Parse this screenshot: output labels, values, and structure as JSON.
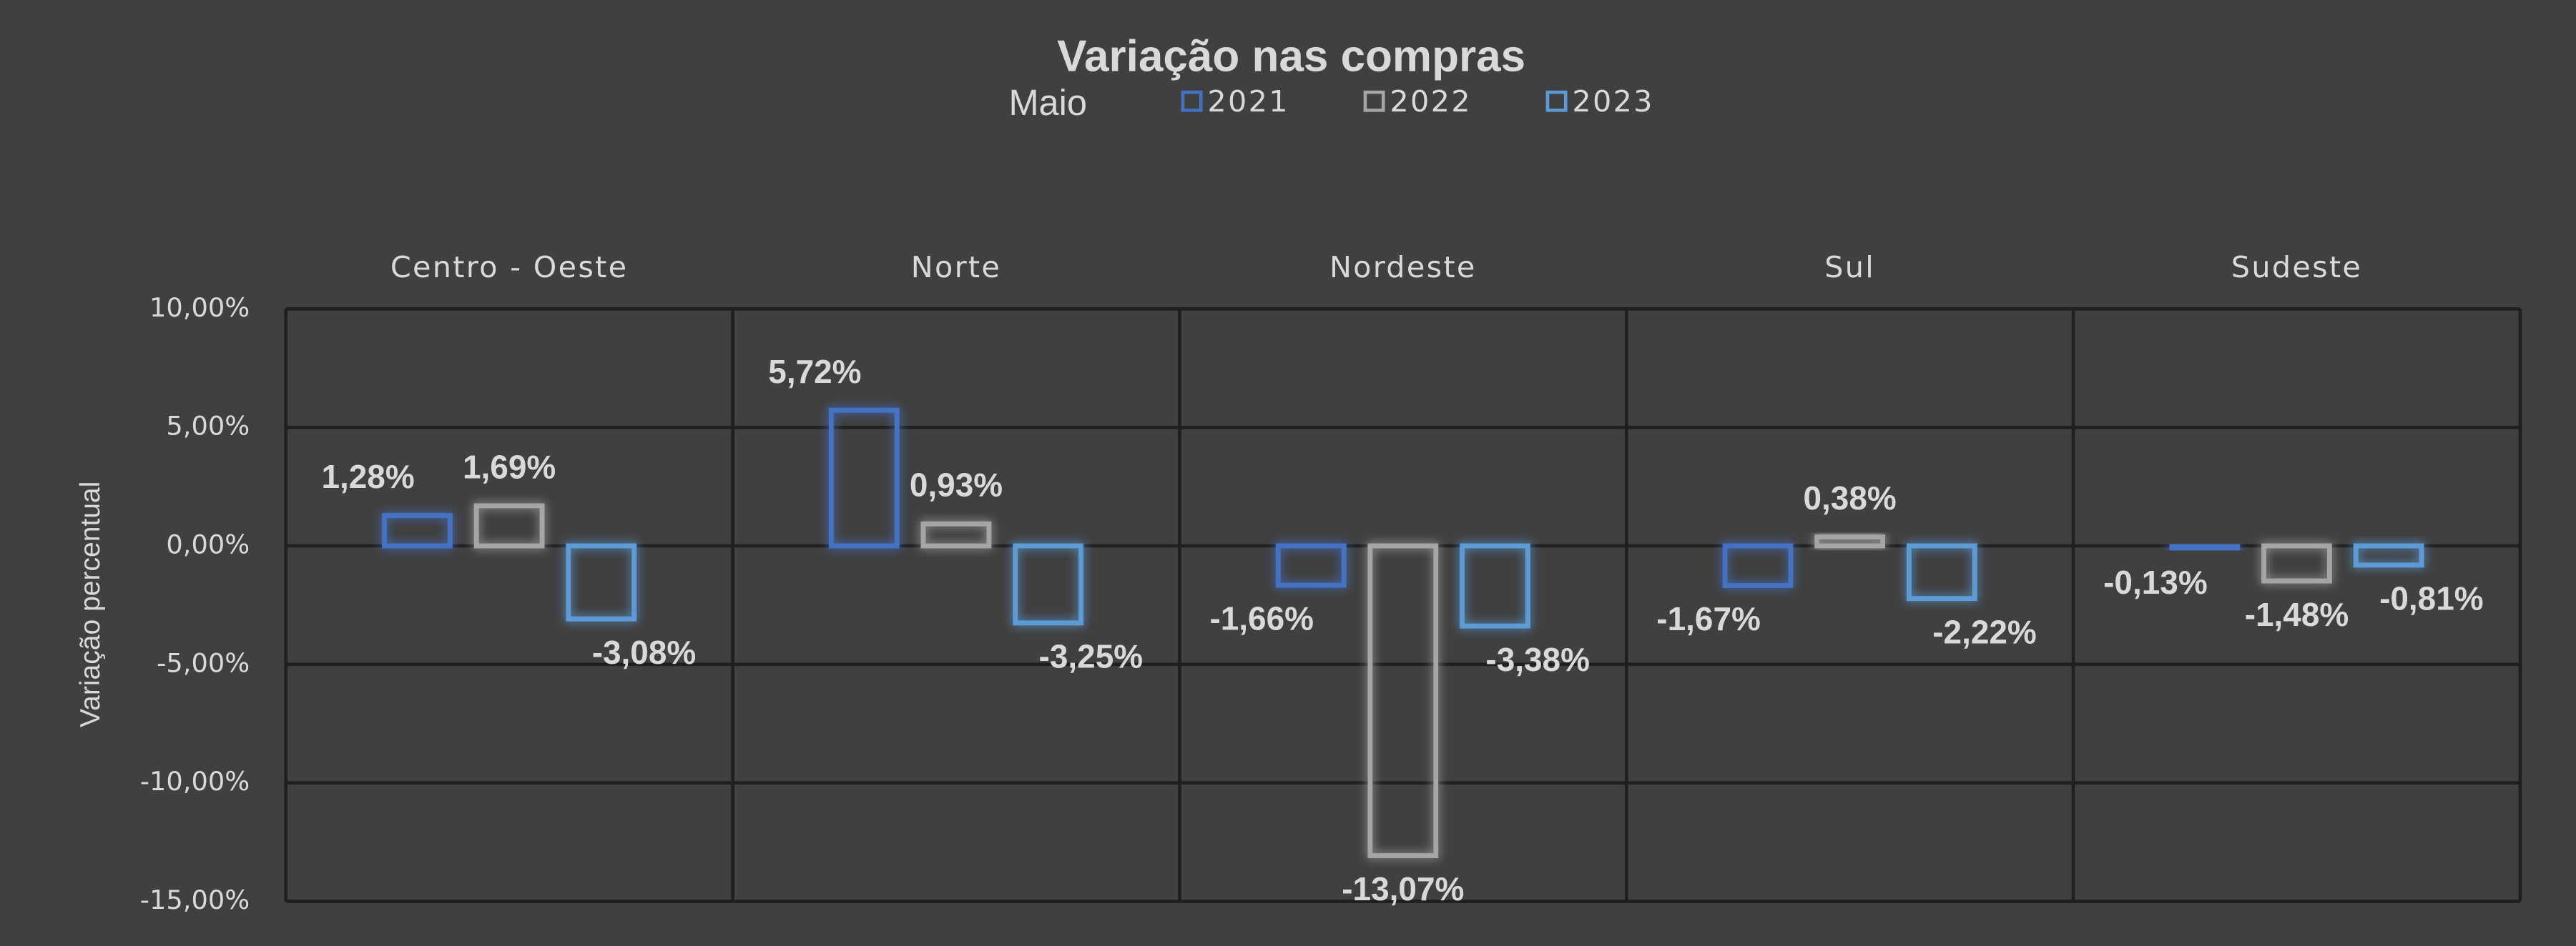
{
  "chart_data": {
    "type": "bar",
    "title": "Variação nas compras",
    "subtitle": "Maio",
    "y_label": "Variação percentual",
    "categories": [
      "Centro - Oeste",
      "Norte",
      "Nordeste",
      "Sul",
      "Sudeste"
    ],
    "series": [
      {
        "name": "2021",
        "color": "#4472c4",
        "values": [
          1.28,
          5.72,
          -1.66,
          -1.67,
          -0.13
        ],
        "value_labels": [
          "1,28%",
          "5,72%",
          "-1,66%",
          "-1,67%",
          "-0,13%"
        ]
      },
      {
        "name": "2022",
        "color": "#a5a5a5",
        "values": [
          1.69,
          0.93,
          -13.07,
          0.38,
          -1.48
        ],
        "value_labels": [
          "1,69%",
          "0,93%",
          "-13,07%",
          "0,38%",
          "-1,48%"
        ]
      },
      {
        "name": "2023",
        "color": "#5b9bd5",
        "values": [
          -3.08,
          -3.25,
          -3.38,
          -2.22,
          -0.81
        ],
        "value_labels": [
          "-3,08%",
          "-3,25%",
          "-3,38%",
          "-2,22%",
          "-0,81%"
        ]
      }
    ],
    "ylim": [
      -15,
      10
    ],
    "yticks": [
      {
        "value": -15,
        "label": "-15,00%"
      },
      {
        "value": -10,
        "label": "-10,00%"
      },
      {
        "value": -5,
        "label": "-5,00%"
      },
      {
        "value": 0,
        "label": "0,00%"
      },
      {
        "value": 5,
        "label": "5,00%"
      },
      {
        "value": 10,
        "label": "10,00%"
      }
    ],
    "grid": true
  }
}
